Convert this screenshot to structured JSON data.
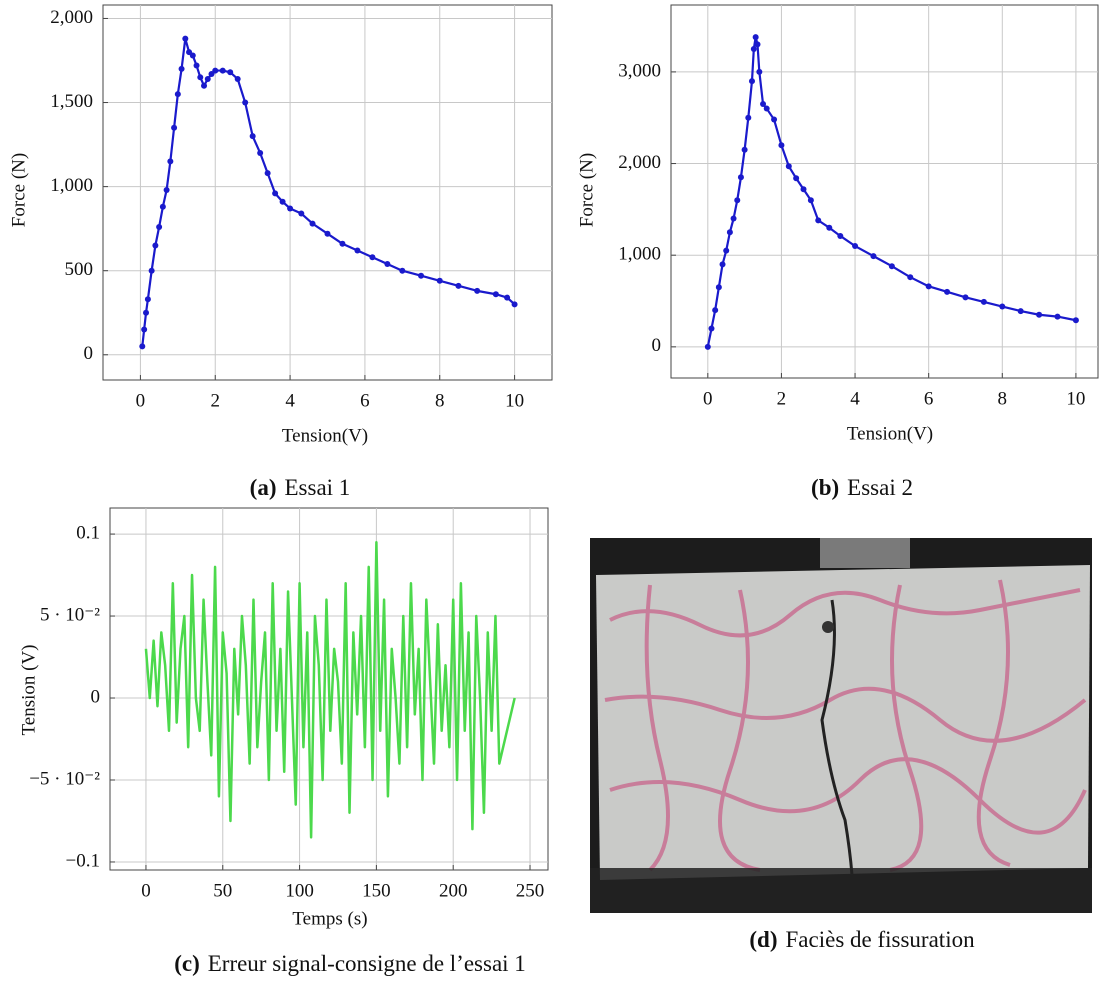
{
  "chart_data": [
    {
      "type": "line",
      "caption_label": "(a)",
      "caption": "Essai 1",
      "xlabel": "Tension(V)",
      "ylabel": "Force (N)",
      "xlim": [
        -1,
        11
      ],
      "ylim": [
        -150,
        2080
      ],
      "xticks": [
        0,
        2,
        4,
        6,
        8,
        10
      ],
      "yticks": [
        0,
        500,
        {
          "value": 1000,
          "label": "1,000"
        },
        {
          "value": 1500,
          "label": "1,500"
        },
        {
          "value": 2000,
          "label": "2,000"
        }
      ],
      "grid": true,
      "marker": true,
      "x": [
        0.05,
        0.1,
        0.15,
        0.2,
        0.3,
        0.4,
        0.5,
        0.6,
        0.7,
        0.8,
        0.9,
        1.0,
        1.1,
        1.2,
        1.3,
        1.4,
        1.5,
        1.6,
        1.7,
        1.8,
        1.9,
        2.0,
        2.2,
        2.4,
        2.6,
        2.8,
        3.0,
        3.2,
        3.4,
        3.6,
        3.8,
        4.0,
        4.3,
        4.6,
        5.0,
        5.4,
        5.8,
        6.2,
        6.6,
        7.0,
        7.5,
        8.0,
        8.5,
        9.0,
        9.5,
        9.8,
        10.0
      ],
      "series": [
        {
          "color": "#1a1acc",
          "values": [
            50,
            150,
            250,
            330,
            500,
            650,
            760,
            880,
            980,
            1150,
            1350,
            1550,
            1700,
            1880,
            1800,
            1780,
            1720,
            1650,
            1600,
            1640,
            1670,
            1690,
            1690,
            1680,
            1640,
            1500,
            1300,
            1200,
            1080,
            960,
            910,
            870,
            840,
            780,
            720,
            660,
            620,
            580,
            540,
            500,
            470,
            440,
            410,
            380,
            360,
            340,
            300
          ]
        }
      ]
    },
    {
      "type": "line",
      "caption_label": "(b)",
      "caption": "Essai 2",
      "xlabel": "Tension(V)",
      "ylabel": "Force (N)",
      "xlim": [
        -1,
        10.6
      ],
      "ylim": [
        -340,
        3730
      ],
      "xticks": [
        0,
        2,
        4,
        6,
        8,
        10
      ],
      "yticks": [
        0,
        {
          "value": 1000,
          "label": "1,000"
        },
        {
          "value": 2000,
          "label": "2,000"
        },
        {
          "value": 3000,
          "label": "3,000"
        }
      ],
      "grid": true,
      "marker": true,
      "x": [
        0,
        0.1,
        0.2,
        0.3,
        0.4,
        0.5,
        0.6,
        0.7,
        0.8,
        0.9,
        1.0,
        1.1,
        1.2,
        1.25,
        1.3,
        1.35,
        1.4,
        1.5,
        1.6,
        1.8,
        2.0,
        2.2,
        2.4,
        2.6,
        2.8,
        3.0,
        3.3,
        3.6,
        4.0,
        4.5,
        5.0,
        5.5,
        6.0,
        6.5,
        7.0,
        7.5,
        8.0,
        8.5,
        9.0,
        9.5,
        10.0
      ],
      "series": [
        {
          "color": "#1a1acc",
          "values": [
            0,
            200,
            400,
            650,
            900,
            1050,
            1250,
            1400,
            1600,
            1850,
            2150,
            2500,
            2900,
            3250,
            3380,
            3300,
            3000,
            2650,
            2600,
            2480,
            2200,
            1970,
            1840,
            1720,
            1600,
            1380,
            1300,
            1210,
            1100,
            990,
            880,
            760,
            660,
            600,
            540,
            490,
            440,
            390,
            350,
            330,
            290
          ]
        }
      ]
    },
    {
      "type": "line",
      "caption_label": "(c)",
      "caption": "Erreur signal-consigne de l’essai 1",
      "xlabel": "Temps (s)",
      "ylabel": "Tension (V)",
      "xlim": [
        -23.4,
        261.7
      ],
      "ylim": [
        -0.1049,
        0.1159
      ],
      "xticks": [
        0,
        50,
        100,
        150,
        200,
        250
      ],
      "yticks": [
        {
          "value": -0.1,
          "label": "−0.1"
        },
        {
          "value": -0.05,
          "label": "−5 · 10⁻²"
        },
        0,
        {
          "value": 0.05,
          "label": "5 · 10⁻²"
        },
        0.1
      ],
      "grid": true,
      "marker": false,
      "x": [
        0,
        2.5,
        5,
        7.5,
        10,
        12.5,
        15,
        17.5,
        20,
        22.5,
        25,
        27.5,
        30,
        32.5,
        35,
        37.5,
        40,
        42.5,
        45,
        47.5,
        50,
        52.5,
        55,
        57.5,
        60,
        62.5,
        65,
        67.5,
        70,
        72.5,
        75,
        77.5,
        80,
        82.5,
        85,
        87.5,
        90,
        92.5,
        95,
        97.5,
        100,
        102.5,
        105,
        107.5,
        110,
        112.5,
        115,
        117.5,
        120,
        122.5,
        125,
        127.5,
        130,
        132.5,
        135,
        137.5,
        140,
        142.5,
        145,
        147.5,
        150,
        152.5,
        155,
        157.5,
        160,
        162.5,
        165,
        167.5,
        170,
        172.5,
        175,
        177.5,
        180,
        182.5,
        185,
        187.5,
        190,
        192.5,
        195,
        197.5,
        200,
        202.5,
        205,
        207.5,
        210,
        212.5,
        215,
        217.5,
        220,
        222.5,
        225,
        227.5,
        230,
        240
      ],
      "series": [
        {
          "color": "#4cd94c",
          "values": [
            0.03,
            0.0,
            0.035,
            -0.005,
            0.04,
            0.02,
            -0.02,
            0.07,
            -0.015,
            0.03,
            0.05,
            -0.03,
            0.075,
            0.0,
            -0.02,
            0.06,
            0.01,
            -0.035,
            0.08,
            -0.06,
            0.04,
            0.015,
            -0.075,
            0.03,
            -0.01,
            0.05,
            0.02,
            -0.04,
            0.06,
            -0.03,
            0.01,
            0.04,
            -0.05,
            0.07,
            -0.02,
            0.03,
            -0.045,
            0.065,
            0.0,
            -0.065,
            0.07,
            -0.03,
            0.04,
            -0.085,
            0.05,
            0.02,
            -0.05,
            0.06,
            -0.02,
            0.03,
            0.01,
            -0.04,
            0.07,
            -0.07,
            0.04,
            -0.01,
            0.05,
            -0.03,
            0.08,
            -0.05,
            0.095,
            -0.02,
            0.06,
            -0.06,
            0.03,
            0.0,
            -0.04,
            0.05,
            -0.03,
            0.07,
            -0.01,
            0.03,
            -0.05,
            0.06,
            0.01,
            -0.04,
            0.045,
            -0.02,
            0.02,
            -0.03,
            0.06,
            -0.05,
            0.07,
            -0.02,
            0.04,
            -0.08,
            0.05,
            0.0,
            -0.07,
            0.04,
            -0.02,
            0.05,
            -0.04,
            0
          ]
        }
      ]
    }
  ],
  "figure_d": {
    "caption_label": "(d)",
    "caption": "Faciès de fissuration"
  }
}
